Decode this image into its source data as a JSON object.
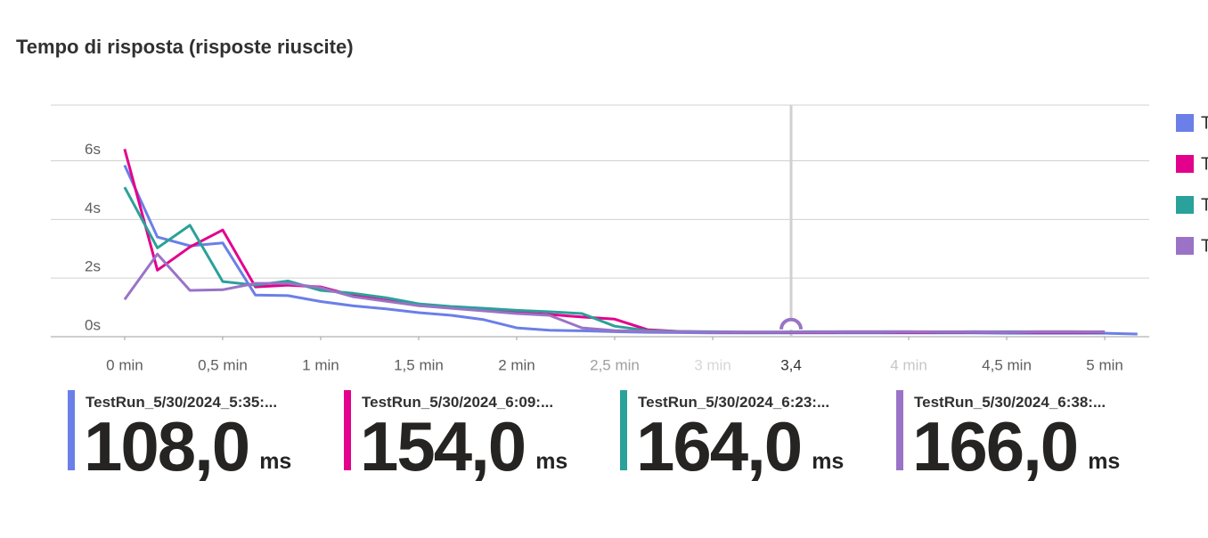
{
  "chart_data": {
    "type": "line",
    "title": "Tempo di risposta (risposte riuscite)",
    "x": [
      0,
      0.167,
      0.333,
      0.5,
      0.667,
      0.833,
      1,
      1.167,
      1.333,
      1.5,
      1.667,
      1.833,
      2,
      2.167,
      2.333,
      2.5,
      2.667,
      2.833,
      3,
      3.167,
      3.333,
      3.5,
      3.667,
      3.833,
      4,
      4.167,
      4.333,
      4.5,
      4.667,
      4.833,
      5,
      5.167
    ],
    "series": [
      {
        "name": "TestRun_5/30/2024_5:35:...",
        "color": "#6b7fe8",
        "values": [
          5.85,
          3.4,
          3.1,
          3.2,
          1.42,
          1.4,
          1.2,
          1.05,
          0.95,
          0.82,
          0.73,
          0.58,
          0.3,
          0.22,
          0.2,
          0.17,
          0.15,
          0.14,
          0.13,
          0.13,
          0.13,
          0.13,
          0.13,
          0.13,
          0.13,
          0.13,
          0.13,
          0.12,
          0.12,
          0.12,
          0.12,
          0.09
        ]
      },
      {
        "name": "TestRun_5/30/2024_6:09:...",
        "color": "#e3008c",
        "values": [
          6.4,
          2.27,
          3.06,
          3.64,
          1.7,
          1.76,
          1.7,
          1.4,
          1.24,
          1.06,
          1.0,
          0.9,
          0.82,
          0.76,
          0.67,
          0.6,
          0.24,
          0.18,
          0.16,
          0.15,
          0.15,
          0.15,
          0.16,
          0.16,
          0.15,
          0.15,
          0.16,
          0.16,
          0.15,
          0.15,
          0.15,
          null
        ]
      },
      {
        "name": "TestRun_5/30/2024_6:23:...",
        "color": "#2aa19a",
        "values": [
          5.1,
          3.03,
          3.8,
          1.88,
          1.76,
          1.9,
          1.58,
          1.48,
          1.33,
          1.12,
          1.03,
          0.97,
          0.9,
          0.85,
          0.79,
          0.36,
          0.21,
          0.18,
          0.17,
          0.16,
          0.16,
          0.17,
          0.17,
          0.17,
          0.17,
          0.16,
          0.17,
          0.17,
          0.17,
          0.17,
          0.16,
          null
        ]
      },
      {
        "name": "TestRun_5/30/2024_6:38:...",
        "color": "#9a73c6",
        "values": [
          1.27,
          2.82,
          1.58,
          1.6,
          1.82,
          1.82,
          1.67,
          1.36,
          1.21,
          1.06,
          0.97,
          0.88,
          0.79,
          0.73,
          0.3,
          0.21,
          0.18,
          0.17,
          0.16,
          0.16,
          0.16,
          0.16,
          0.17,
          0.17,
          0.17,
          0.17,
          0.17,
          0.16,
          0.17,
          0.17,
          0.17,
          null
        ]
      }
    ],
    "xlim": [
      -0.377,
      5.227
    ],
    "ylim": [
      0,
      7.9
    ],
    "xticks": [
      {
        "value": 0,
        "label": "0 min"
      },
      {
        "value": 0.5,
        "label": "0,5 min"
      },
      {
        "value": 1,
        "label": "1 min"
      },
      {
        "value": 1.5,
        "label": "1,5 min"
      },
      {
        "value": 2,
        "label": "2 min"
      },
      {
        "value": 2.5,
        "label": "2,5 min"
      },
      {
        "value": 3,
        "label": "3 min"
      },
      {
        "value": 4,
        "label": "4 min"
      },
      {
        "value": 4.5,
        "label": "4,5 min"
      },
      {
        "value": 5,
        "label": "5 min"
      }
    ],
    "yticks": [
      {
        "value": 0,
        "label": "0s"
      },
      {
        "value": 2,
        "label": "2s"
      },
      {
        "value": 4,
        "label": "4s"
      },
      {
        "value": 6,
        "label": "6s"
      }
    ],
    "grid": true,
    "cursor": {
      "value": 3.4,
      "label": "3,4"
    },
    "summary": {
      "values": [
        108.0,
        154.0,
        164.0,
        166.0
      ],
      "value_labels": [
        "108,0",
        "154,0",
        "164,0",
        "166,0"
      ],
      "unit": "ms"
    }
  }
}
